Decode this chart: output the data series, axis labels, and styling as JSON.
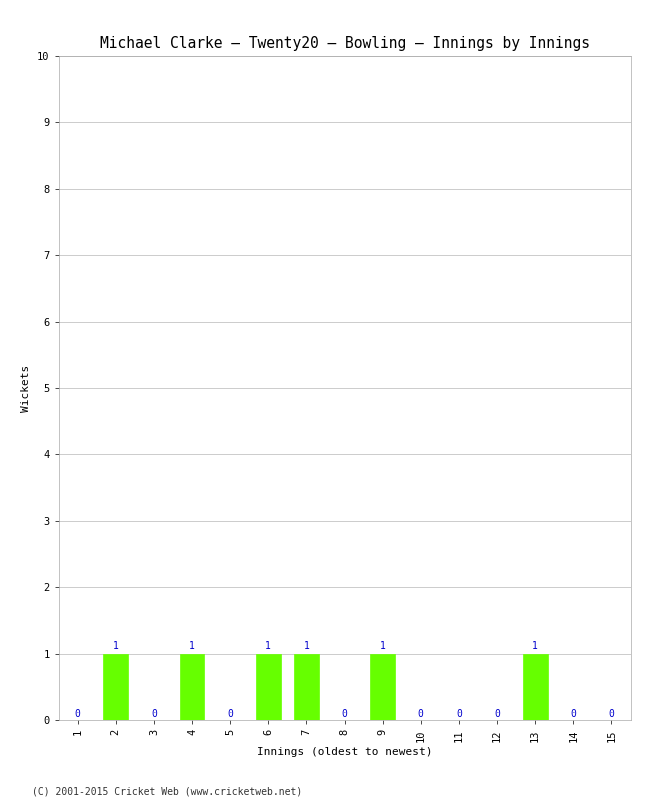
{
  "title": "Michael Clarke – Twenty20 – Bowling – Innings by Innings",
  "xlabel": "Innings (oldest to newest)",
  "ylabel": "Wickets",
  "innings": [
    1,
    2,
    3,
    4,
    5,
    6,
    7,
    8,
    9,
    10,
    11,
    12,
    13,
    14,
    15
  ],
  "wickets": [
    0,
    1,
    0,
    1,
    0,
    1,
    1,
    0,
    1,
    0,
    0,
    0,
    1,
    0,
    0
  ],
  "bar_color": "#66ff00",
  "bar_edge_color": "#66ff00",
  "ylim": [
    0,
    10
  ],
  "yticks": [
    0,
    1,
    2,
    3,
    4,
    5,
    6,
    7,
    8,
    9,
    10
  ],
  "xlim": [
    0.5,
    15.5
  ],
  "xticks": [
    1,
    2,
    3,
    4,
    5,
    6,
    7,
    8,
    9,
    10,
    11,
    12,
    13,
    14,
    15
  ],
  "value_label_color": "#0000cc",
  "value_label_fontsize": 7,
  "title_fontsize": 10.5,
  "axis_label_fontsize": 8,
  "tick_fontsize": 7.5,
  "background_color": "#ffffff",
  "grid_color": "#cccccc",
  "footer": "(C) 2001-2015 Cricket Web (www.cricketweb.net)",
  "footer_fontsize": 7,
  "bar_width": 0.65
}
